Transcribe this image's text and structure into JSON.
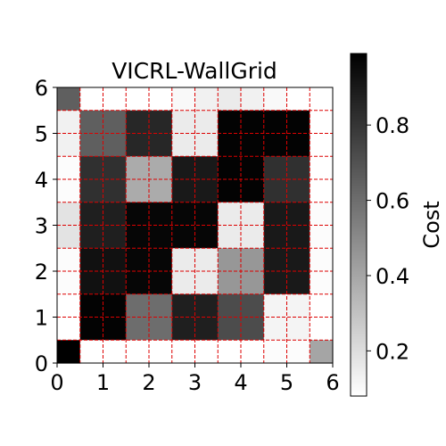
{
  "chart_data": {
    "type": "heatmap",
    "title": "VICRL-WallGrid",
    "xlim": [
      0,
      6
    ],
    "ylim": [
      0,
      6
    ],
    "xticks": [
      "0",
      "1",
      "2",
      "3",
      "4",
      "5",
      "6"
    ],
    "yticks": [
      "0",
      "1",
      "2",
      "3",
      "4",
      "5",
      "6"
    ],
    "grid": true,
    "grid_style": "dashed",
    "grid_color": "#dd0000",
    "grid_values": [
      0.5,
      1,
      1.5,
      2,
      2.5,
      3,
      3.5,
      4,
      4.5,
      5,
      5.5
    ],
    "colormap": "gray_r",
    "colorbar": {
      "label": "Cost",
      "range": [
        0.08,
        0.99
      ],
      "ticks": [
        "0.2",
        "0.4",
        "0.6",
        "0.8"
      ],
      "tick_values": [
        0.2,
        0.4,
        0.6,
        0.8
      ]
    },
    "rows_top_to_bottom": [
      [
        0.65,
        0.08,
        0.08,
        0.08,
        0.08,
        0.1,
        0.13,
        0.15,
        0.13,
        0.1,
        0.08,
        0.08
      ],
      [
        0.13,
        0.65,
        0.65,
        0.85,
        0.85,
        0.15,
        0.15,
        0.98,
        0.98,
        0.98,
        0.98,
        0.08
      ],
      [
        0.13,
        0.65,
        0.65,
        0.85,
        0.85,
        0.15,
        0.15,
        0.98,
        0.98,
        0.98,
        0.98,
        0.08
      ],
      [
        0.09,
        0.82,
        0.82,
        0.38,
        0.38,
        0.9,
        0.9,
        0.98,
        0.98,
        0.82,
        0.82,
        0.08
      ],
      [
        0.09,
        0.82,
        0.82,
        0.38,
        0.38,
        0.9,
        0.9,
        0.98,
        0.98,
        0.82,
        0.82,
        0.08
      ],
      [
        0.18,
        0.88,
        0.88,
        0.97,
        0.97,
        0.97,
        0.97,
        0.15,
        0.15,
        0.9,
        0.9,
        0.09
      ],
      [
        0.18,
        0.88,
        0.88,
        0.97,
        0.97,
        0.97,
        0.97,
        0.15,
        0.15,
        0.9,
        0.9,
        0.09
      ],
      [
        0.09,
        0.93,
        0.93,
        0.97,
        0.97,
        0.15,
        0.15,
        0.45,
        0.45,
        0.9,
        0.9,
        0.09
      ],
      [
        0.09,
        0.93,
        0.93,
        0.97,
        0.97,
        0.15,
        0.15,
        0.45,
        0.45,
        0.9,
        0.9,
        0.09
      ],
      [
        0.08,
        0.98,
        0.98,
        0.6,
        0.6,
        0.88,
        0.88,
        0.72,
        0.72,
        0.12,
        0.12,
        0.08
      ],
      [
        0.08,
        0.98,
        0.98,
        0.6,
        0.6,
        0.88,
        0.88,
        0.72,
        0.72,
        0.12,
        0.12,
        0.08
      ],
      [
        0.99,
        0.08,
        0.08,
        0.08,
        0.08,
        0.08,
        0.08,
        0.08,
        0.08,
        0.09,
        0.09,
        0.4
      ]
    ]
  }
}
